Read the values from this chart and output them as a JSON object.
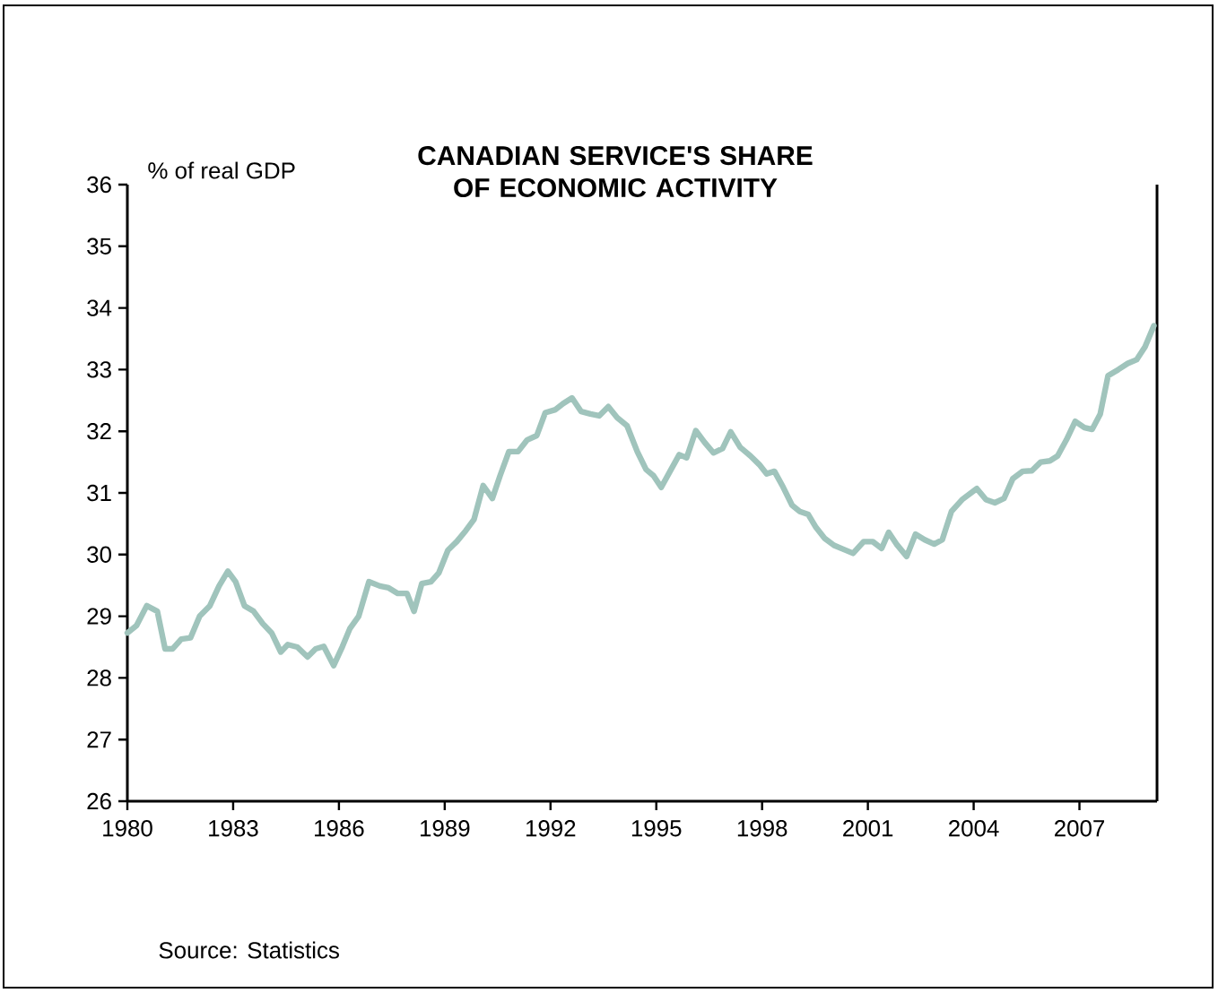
{
  "chart_data": {
    "type": "line",
    "title": "CANADIAN SERVICE'S SHARE OF ECONOMIC ACTIVITY",
    "ylabel": "% of real GDP",
    "annotations": [
      "Source: Statistics"
    ],
    "xlim": [
      1980,
      2009.2
    ],
    "xticks": [
      1980,
      1983,
      1986,
      1989,
      1992,
      1995,
      1998,
      2001,
      2004,
      2007
    ],
    "ylim": [
      26,
      36
    ],
    "yticks": [
      26,
      27,
      28,
      29,
      30,
      31,
      32,
      33,
      34,
      35,
      36
    ],
    "grid": false,
    "marker": "none",
    "line_style": "solid",
    "series": [
      {
        "color": "#a0c4bc",
        "x": [
          1980.0,
          1980.26,
          1980.55,
          1980.85,
          1981.07,
          1981.28,
          1981.53,
          1981.79,
          1982.05,
          1982.34,
          1982.6,
          1982.85,
          1983.07,
          1983.32,
          1983.58,
          1983.84,
          1984.09,
          1984.35,
          1984.55,
          1984.82,
          1985.11,
          1985.34,
          1985.57,
          1985.85,
          1986.1,
          1986.31,
          1986.56,
          1986.85,
          1987.16,
          1987.41,
          1987.67,
          1987.93,
          1988.13,
          1988.35,
          1988.61,
          1988.83,
          1989.09,
          1989.34,
          1989.6,
          1989.83,
          1990.09,
          1990.35,
          1990.57,
          1990.82,
          1991.08,
          1991.34,
          1991.61,
          1991.85,
          1992.14,
          1992.36,
          1992.61,
          1992.87,
          1993.13,
          1993.38,
          1993.64,
          1993.89,
          1994.17,
          1994.46,
          1994.71,
          1994.92,
          1995.14,
          1995.39,
          1995.65,
          1995.86,
          1996.12,
          1996.37,
          1996.62,
          1996.88,
          1997.11,
          1997.38,
          1997.67,
          1997.92,
          1998.13,
          1998.35,
          1998.6,
          1998.85,
          1999.07,
          1999.31,
          1999.53,
          1999.78,
          2000.04,
          2000.29,
          2000.58,
          2000.88,
          2001.14,
          2001.39,
          2001.59,
          2001.81,
          2002.1,
          2002.35,
          2002.61,
          2002.88,
          2003.11,
          2003.37,
          2003.67,
          2004.09,
          2004.35,
          2004.6,
          2004.86,
          2005.11,
          2005.39,
          2005.65,
          2005.9,
          2006.16,
          2006.38,
          2006.63,
          2006.88,
          2007.14,
          2007.36,
          2007.59,
          2007.81,
          2008.1,
          2008.37,
          2008.62,
          2008.86,
          2009.11
        ],
        "values": [
          28.73,
          28.85,
          29.17,
          29.08,
          28.47,
          28.47,
          28.63,
          28.65,
          29.0,
          29.17,
          29.49,
          29.73,
          29.56,
          29.17,
          29.08,
          28.88,
          28.73,
          28.42,
          28.54,
          28.5,
          28.34,
          28.47,
          28.51,
          28.2,
          28.51,
          28.8,
          29.0,
          29.56,
          29.49,
          29.46,
          29.37,
          29.37,
          29.08,
          29.53,
          29.56,
          29.7,
          30.07,
          30.21,
          30.39,
          30.57,
          31.12,
          30.91,
          31.28,
          31.67,
          31.67,
          31.86,
          31.93,
          32.3,
          32.35,
          32.45,
          32.54,
          32.32,
          32.28,
          32.25,
          32.4,
          32.22,
          32.09,
          31.67,
          31.38,
          31.28,
          31.09,
          31.35,
          31.62,
          31.57,
          32.01,
          31.82,
          31.65,
          31.72,
          31.99,
          31.74,
          31.6,
          31.46,
          31.31,
          31.35,
          31.09,
          30.8,
          30.7,
          30.65,
          30.44,
          30.26,
          30.15,
          30.09,
          30.02,
          30.21,
          30.21,
          30.1,
          30.36,
          30.17,
          29.97,
          30.33,
          30.24,
          30.17,
          30.24,
          30.7,
          30.89,
          31.07,
          30.89,
          30.84,
          30.91,
          31.23,
          31.35,
          31.36,
          31.5,
          31.52,
          31.6,
          31.86,
          32.16,
          32.06,
          32.03,
          32.28,
          32.9,
          33.0,
          33.1,
          33.16,
          33.37,
          33.71
        ]
      }
    ]
  }
}
